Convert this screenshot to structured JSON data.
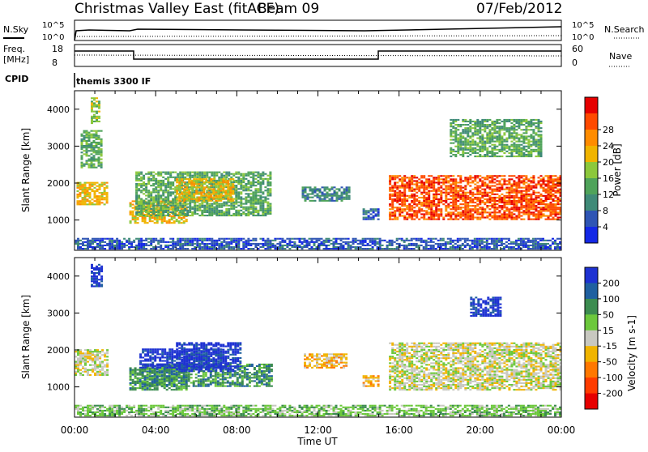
{
  "header": {
    "title": "Christmas Valley East (fitACF)",
    "beam": "Beam 09",
    "date": "07/Feb/2012"
  },
  "top_panels": {
    "nsky_label": "N.Sky",
    "nsearch_label": "N.Search",
    "nsky_ticks": [
      "10^5",
      "10^0"
    ],
    "nsearch_ticks": [
      "10^5",
      "10^0"
    ],
    "freq_label_1": "Freq.",
    "freq_label_2": "[MHz]",
    "freq_ticks": [
      "18",
      "8"
    ],
    "nave_label": "Nave",
    "nave_ticks": [
      "60",
      "0"
    ],
    "cpid_label": "CPID",
    "cpid_text": "themis 3300 IF"
  },
  "chart_data": [
    {
      "type": "heatmap",
      "name": "power-panel",
      "xlabel": "",
      "ylabel": "Slant Range [km]",
      "ylim": [
        180,
        4500
      ],
      "xlim": [
        0,
        24
      ],
      "yticks": [
        1000,
        2000,
        3000,
        4000
      ],
      "colorbar": {
        "label": "Power [dB]",
        "ticks": [
          "4",
          "8",
          "12",
          "16",
          "20",
          "24",
          "28"
        ],
        "colors": [
          "#1428e6",
          "#2f55b4",
          "#3f8a78",
          "#4fa35a",
          "#8cc83c",
          "#f0b400",
          "#ff8c00",
          "#ff4a00",
          "#e60000"
        ]
      },
      "regions": [
        {
          "t0": 0.1,
          "t1": 1.6,
          "r0": 1400,
          "r1": 2000,
          "level": 5
        },
        {
          "t0": 0.3,
          "t1": 1.3,
          "r0": 2400,
          "r1": 3400,
          "level": 3
        },
        {
          "t0": 0.8,
          "t1": 1.2,
          "r0": 3600,
          "r1": 4300,
          "level": 4
        },
        {
          "t0": 2.7,
          "t1": 5.5,
          "r0": 900,
          "r1": 1500,
          "level": 5
        },
        {
          "t0": 3.0,
          "t1": 9.6,
          "r0": 1100,
          "r1": 2300,
          "level": 3
        },
        {
          "t0": 5.0,
          "t1": 7.8,
          "r0": 1500,
          "r1": 2100,
          "level": 5
        },
        {
          "t0": 11.2,
          "t1": 13.5,
          "r0": 1500,
          "r1": 1900,
          "level": 2
        },
        {
          "t0": 14.2,
          "t1": 15.0,
          "r0": 1000,
          "r1": 1300,
          "level": 1
        },
        {
          "t0": 15.5,
          "t1": 24.0,
          "r0": 1000,
          "r1": 2200,
          "level": 7
        },
        {
          "t0": 18.5,
          "t1": 23.0,
          "r0": 2700,
          "r1": 3700,
          "level": 3
        },
        {
          "t0": 0.0,
          "t1": 24.0,
          "r0": 200,
          "r1": 500,
          "level": 1
        }
      ]
    },
    {
      "type": "heatmap",
      "name": "velocity-panel",
      "xlabel": "Time UT",
      "ylabel": "Slant Range [km]",
      "ylim": [
        180,
        4500
      ],
      "xlim": [
        0,
        24
      ],
      "xticks": [
        "00:00",
        "04:00",
        "08:00",
        "12:00",
        "16:00",
        "20:00",
        "00:00"
      ],
      "yticks": [
        1000,
        2000,
        3000,
        4000
      ],
      "colorbar": {
        "label": "Velocity [m s-1]",
        "ticks": [
          "200",
          "100",
          "50",
          "15",
          "-15",
          "-50",
          "-100",
          "-200"
        ],
        "colors": [
          "#1e32d2",
          "#2060a0",
          "#3c8c50",
          "#6cc83c",
          "#c8c8c0",
          "#f0b400",
          "#ff7800",
          "#ff3c00",
          "#e60000"
        ]
      },
      "regions": [
        {
          "t0": 0.0,
          "t1": 1.6,
          "r0": 1300,
          "r1": 2000,
          "level": 4
        },
        {
          "t0": 0.8,
          "t1": 1.3,
          "r0": 3700,
          "r1": 4300,
          "level": 0
        },
        {
          "t0": 2.7,
          "t1": 5.5,
          "r0": 900,
          "r1": 1500,
          "level": 2
        },
        {
          "t0": 3.3,
          "t1": 9.7,
          "r0": 1000,
          "r1": 1600,
          "level": 2
        },
        {
          "t0": 3.2,
          "t1": 7.2,
          "r0": 1500,
          "r1": 2000,
          "level": 0
        },
        {
          "t0": 5.0,
          "t1": 8.2,
          "r0": 1400,
          "r1": 2200,
          "level": 0
        },
        {
          "t0": 11.3,
          "t1": 13.4,
          "r0": 1500,
          "r1": 1900,
          "level": 5
        },
        {
          "t0": 14.2,
          "t1": 15.0,
          "r0": 1000,
          "r1": 1300,
          "level": 5
        },
        {
          "t0": 15.5,
          "t1": 24.0,
          "r0": 900,
          "r1": 2200,
          "level": 4
        },
        {
          "t0": 19.5,
          "t1": 21.0,
          "r0": 2900,
          "r1": 3400,
          "level": 0
        },
        {
          "t0": 0.0,
          "t1": 24.0,
          "r0": 200,
          "r1": 500,
          "level": 3
        }
      ]
    }
  ]
}
